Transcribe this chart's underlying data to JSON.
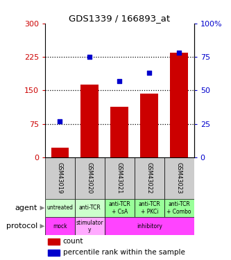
{
  "title": "GDS1339 / 166893_at",
  "samples": [
    "GSM43019",
    "GSM43020",
    "GSM43021",
    "GSM43022",
    "GSM43023"
  ],
  "counts": [
    22,
    163,
    113,
    143,
    235
  ],
  "percentile_ranks": [
    27,
    75,
    57,
    63,
    78
  ],
  "left_yticks": [
    0,
    75,
    150,
    225,
    300
  ],
  "left_color": "#cc0000",
  "right_yticks": [
    0,
    25,
    50,
    75,
    100
  ],
  "right_color": "#0000cc",
  "bar_color": "#cc0000",
  "dot_color": "#0000cc",
  "agent_labels": [
    "untreated",
    "anti-TCR",
    "anti-TCR\n+ CsA",
    "anti-TCR\n+ PKCi",
    "anti-TCR\n+ Combo"
  ],
  "agent_colors": [
    "#ccffcc",
    "#ccffcc",
    "#99ff99",
    "#99ff99",
    "#99ff99"
  ],
  "sample_bg": "#cccccc",
  "agent_bg_light": "#ccffcc",
  "agent_bg_bright": "#99ff99",
  "protocol_mock_color": "#ff44ff",
  "protocol_stimulatory_color": "#ffaaff",
  "protocol_inhibitory_color": "#ff44ff",
  "row_label_agent": "agent",
  "row_label_protocol": "protocol",
  "legend_count_color": "#cc0000",
  "legend_pct_color": "#0000cc"
}
